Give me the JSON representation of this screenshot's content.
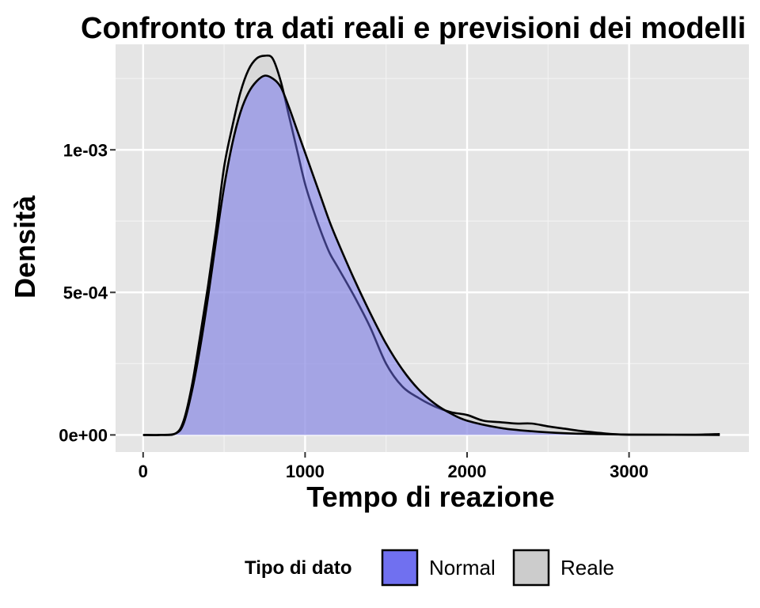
{
  "chart_data": {
    "type": "area",
    "title": "Confronto tra dati reali e previsioni dei modelli",
    "xlabel": "Tempo di reazione",
    "ylabel": "Densità",
    "xlim": [
      -170,
      3740
    ],
    "ylim": [
      -6e-05,
      0.00137
    ],
    "x_ticks": [
      0,
      1000,
      2000,
      3000
    ],
    "x_tick_labels": [
      "0",
      "1000",
      "2000",
      "3000"
    ],
    "y_ticks": [
      0,
      0.0005,
      0.001
    ],
    "y_tick_labels": [
      "0e+00",
      "5e-04",
      "1e-03"
    ],
    "grid": true,
    "legend": {
      "title": "Tipo di dato",
      "position": "bottom",
      "entries": [
        {
          "name": "Normal",
          "color": "#7070f0"
        },
        {
          "name": "Reale",
          "color": "#cccccc"
        }
      ]
    },
    "series": [
      {
        "name": "Normal",
        "fill": "#7070f0",
        "x": [
          0,
          100,
          200,
          250,
          300,
          350,
          400,
          450,
          500,
          550,
          600,
          650,
          700,
          750,
          800,
          850,
          900,
          950,
          1000,
          1050,
          1100,
          1150,
          1200,
          1300,
          1400,
          1500,
          1600,
          1700,
          1800,
          1900,
          2000,
          2200,
          2400,
          2600,
          2800,
          3000,
          3200,
          3400,
          3560
        ],
        "values": [
          0.0,
          0.0,
          5e-06,
          4e-05,
          0.00015,
          0.0003,
          0.00048,
          0.00068,
          0.00087,
          0.00102,
          0.00113,
          0.0012,
          0.00124,
          0.00126,
          0.00125,
          0.00122,
          0.00115,
          0.00107,
          0.00099,
          0.00091,
          0.00083,
          0.00075,
          0.00068,
          0.00055,
          0.00043,
          0.00032,
          0.00023,
          0.00016,
          0.00011,
          7.5e-05,
          5e-05,
          2.5e-05,
          1.3e-05,
          6e-06,
          3e-06,
          1e-06,
          5e-07,
          2e-07,
          0.0
        ]
      },
      {
        "name": "Reale",
        "fill": "#cccccc",
        "x": [
          0,
          100,
          200,
          250,
          300,
          350,
          400,
          450,
          500,
          550,
          600,
          650,
          700,
          750,
          800,
          850,
          900,
          950,
          1000,
          1050,
          1100,
          1150,
          1200,
          1300,
          1400,
          1500,
          1600,
          1700,
          1800,
          1900,
          2000,
          2100,
          2200,
          2300,
          2400,
          2500,
          2600,
          2700,
          2800,
          2900,
          3000,
          3200,
          3400,
          3560
        ],
        "values": [
          0.0,
          0.0,
          5e-06,
          5e-05,
          0.00017,
          0.00034,
          0.00052,
          0.00072,
          0.00094,
          0.00108,
          0.0012,
          0.00128,
          0.00132,
          0.00133,
          0.00132,
          0.00124,
          0.00112,
          0.001,
          0.00088,
          0.00079,
          0.00071,
          0.00064,
          0.00059,
          0.00049,
          0.00038,
          0.00025,
          0.00017,
          0.00013,
          0.0001,
          8e-05,
          7e-05,
          5e-05,
          4.5e-05,
          4e-05,
          4e-05,
          3e-05,
          2.2e-05,
          1.4e-05,
          8e-06,
          3e-06,
          1e-06,
          1e-06,
          1e-06,
          3e-06
        ]
      }
    ]
  }
}
